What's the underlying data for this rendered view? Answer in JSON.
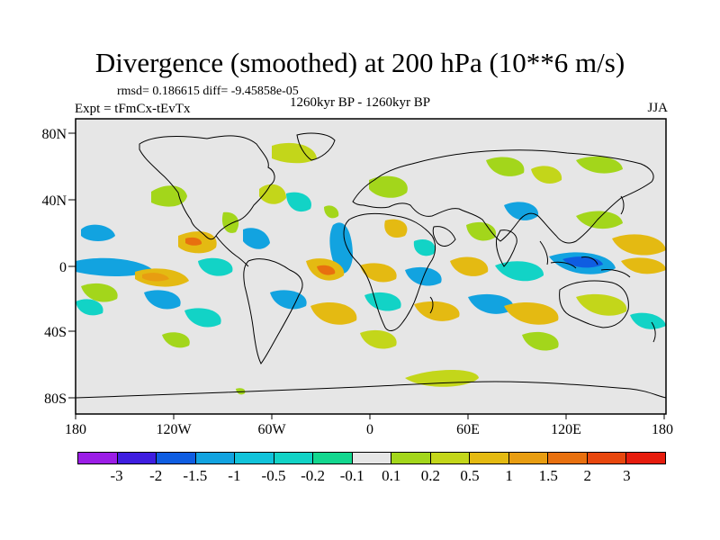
{
  "title": "Divergence (smoothed) at 200 hPa (10**6 m/s)",
  "stats_text": "rmsd= 0.186615 diff= -9.45858e-05",
  "experiment_text": "Expt = tFmCx-tEvTx",
  "period_text": "1260kyr BP - 1260kyr BP",
  "season_text": "JJA",
  "map": {
    "projection": "cylindrical equidistant",
    "lon_range": [
      -180,
      180
    ],
    "lat_range": [
      -90,
      90
    ],
    "lat_ticks": [
      "80N",
      "40N",
      "0",
      "40S",
      "80S"
    ],
    "lon_ticks": [
      "180",
      "120W",
      "60W",
      "0",
      "60E",
      "120E",
      "180"
    ],
    "background_color": "#e6e6e6",
    "coastline_color": "#000000"
  },
  "colorbar": {
    "colors": [
      "#9b1de6",
      "#3f1ee0",
      "#0f5de1",
      "#12a3e0",
      "#11c3da",
      "#12d3c6",
      "#13d78f",
      "#e6e6e6",
      "#a3d61b",
      "#c3d61a",
      "#e4ba12",
      "#e89d11",
      "#e8700f",
      "#e8470e",
      "#e61c0d"
    ],
    "labels": [
      "-3",
      "-2",
      "-1.5",
      "-1",
      "-0.5",
      "-0.2",
      "-0.1",
      "0.1",
      "0.2",
      "0.5",
      "1",
      "1.5",
      "2",
      "3"
    ]
  }
}
